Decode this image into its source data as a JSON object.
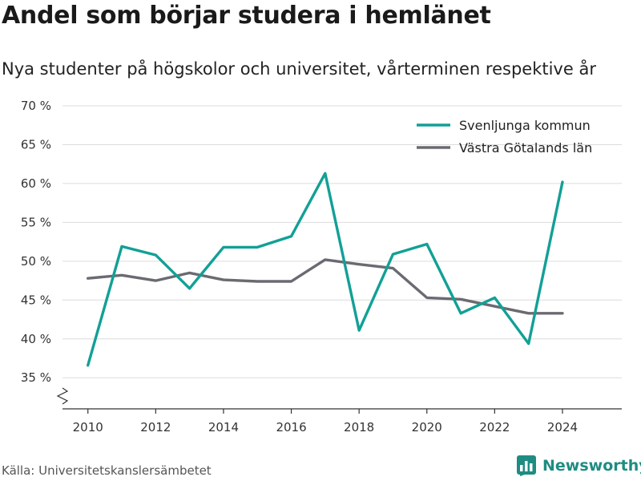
{
  "header": {
    "title": "Andel som börjar studera i hemlänet",
    "subtitle": "Nya studenter på högskolor och universitet, vårterminen respektive år"
  },
  "footer": {
    "source": "Källa: Universitetskanslersämbetet",
    "brand": "Newsworthy",
    "brand_icon": "bar-chart-logo-icon",
    "brand_color": "#1f8c82"
  },
  "chart_data": {
    "type": "line",
    "title": "Andel som börjar studera i hemlänet",
    "subtitle": "Nya studenter på högskolor och universitet, vårterminen respektive år",
    "x": [
      2010,
      2011,
      2012,
      2013,
      2014,
      2015,
      2016,
      2017,
      2018,
      2019,
      2020,
      2021,
      2022,
      2023,
      2024
    ],
    "xticks": [
      2010,
      2012,
      2014,
      2016,
      2018,
      2020,
      2022,
      2024
    ],
    "yticks": [
      35,
      40,
      45,
      50,
      55,
      60,
      65,
      70
    ],
    "ytick_labels": [
      "35 %",
      "40 %",
      "45 %",
      "50 %",
      "55 %",
      "60 %",
      "65 %",
      "70 %"
    ],
    "ylim": [
      31,
      70
    ],
    "y_axis_break": true,
    "grid": true,
    "legend_position": "top-right",
    "series": [
      {
        "name": "Svenljunga kommun",
        "color": "#12a096",
        "values": [
          36.6,
          51.9,
          50.8,
          46.5,
          51.8,
          51.8,
          53.2,
          61.3,
          41.1,
          50.9,
          52.2,
          43.3,
          45.3,
          39.4,
          60.2
        ]
      },
      {
        "name": "Västra Götalands län",
        "color": "#6a6a72",
        "values": [
          47.8,
          48.2,
          47.5,
          48.5,
          47.6,
          47.4,
          47.4,
          50.2,
          49.6,
          49.1,
          45.3,
          45.1,
          44.2,
          43.3,
          43.3
        ]
      }
    ]
  }
}
